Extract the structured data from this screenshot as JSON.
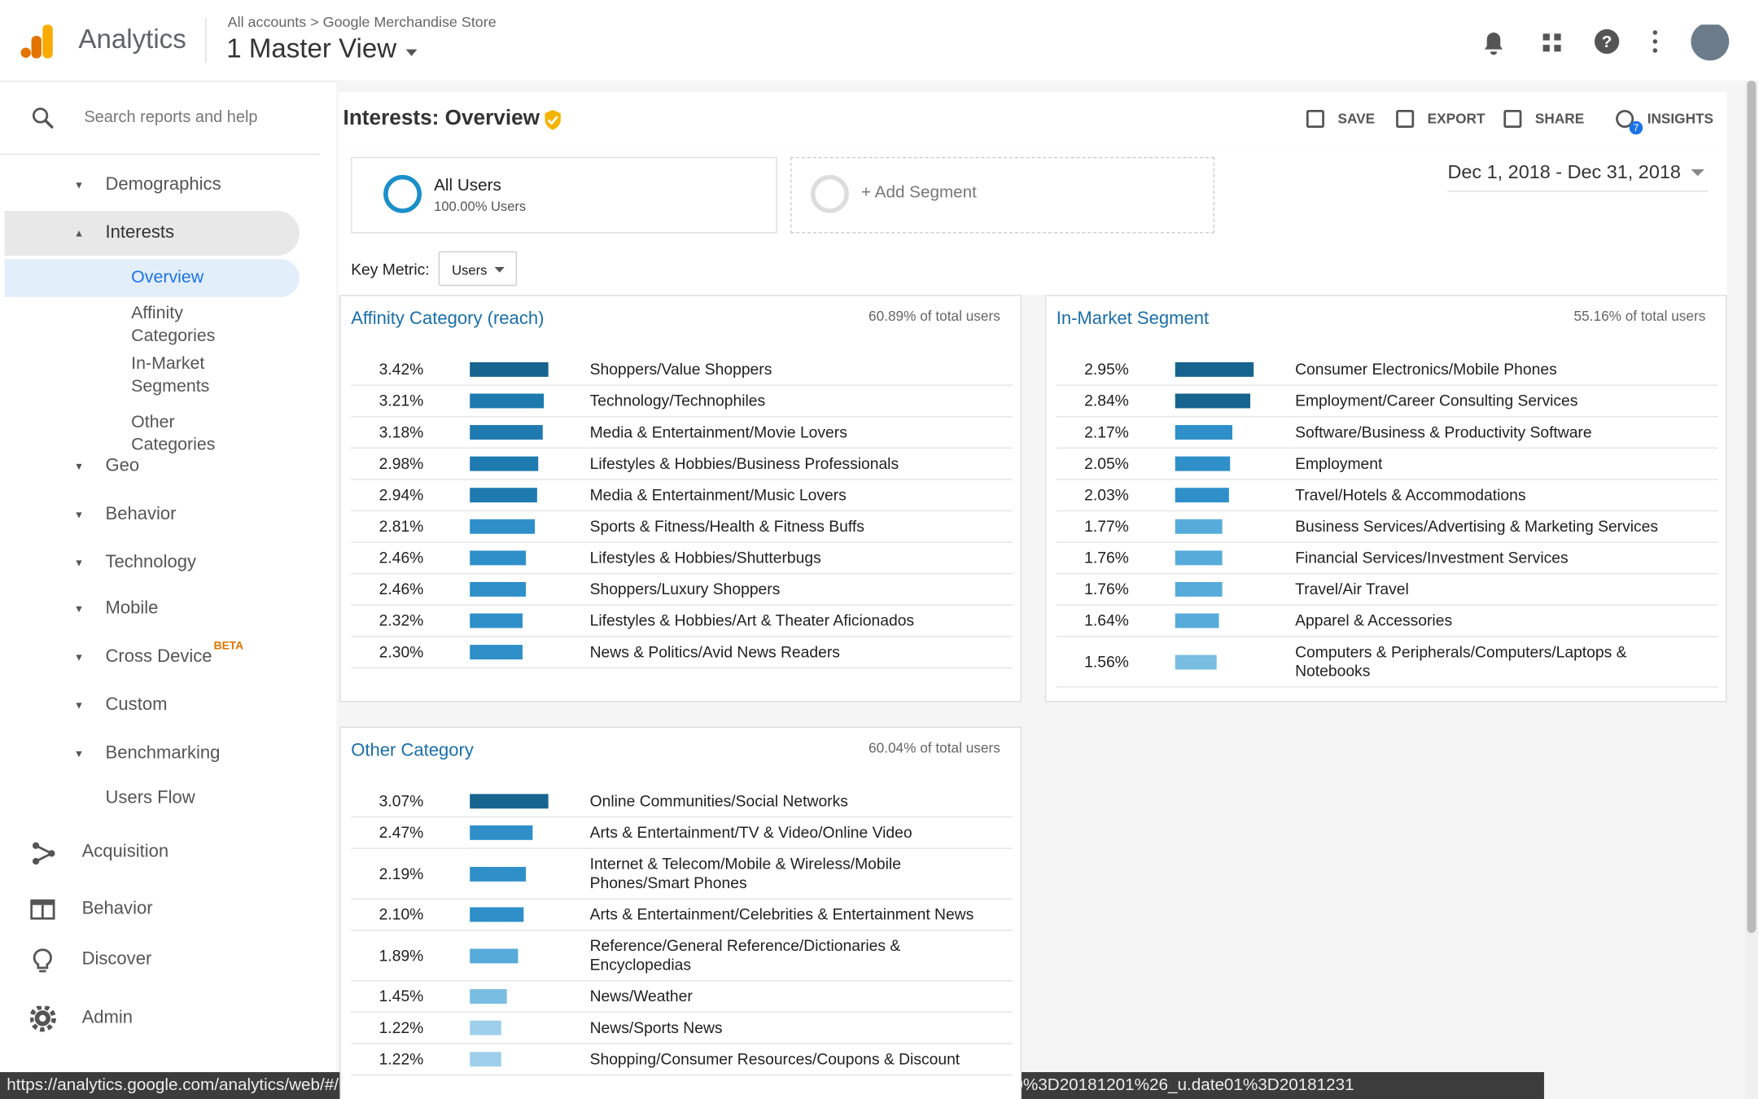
{
  "header": {
    "app": "Analytics",
    "breadcrumb": [
      "All accounts",
      "Google Merchandise Store"
    ],
    "view": "1 Master View"
  },
  "search": "Search reports and help",
  "nav": [
    {
      "label": "Demographics",
      "arrow": "down"
    },
    {
      "label": "Interests",
      "arrow": "up"
    },
    {
      "label": "Overview",
      "active": true
    },
    {
      "label": "Affinity Categories"
    },
    {
      "label": "In-Market Segments"
    },
    {
      "label": "Other Categories"
    },
    {
      "label": "Geo",
      "arrow": "down"
    },
    {
      "label": "Behavior",
      "arrow": "down"
    },
    {
      "label": "Technology",
      "arrow": "down"
    },
    {
      "label": "Mobile",
      "arrow": "down"
    },
    {
      "label": "Cross Device",
      "arrow": "down",
      "badge": "BETA"
    },
    {
      "label": "Custom",
      "arrow": "down"
    },
    {
      "label": "Benchmarking",
      "arrow": "down"
    },
    {
      "label": "Users Flow"
    }
  ],
  "sections": [
    "Acquisition",
    "Behavior",
    "Discover",
    "Admin"
  ],
  "report": {
    "title": "Interests: Overview",
    "actions": [
      "SAVE",
      "EXPORT",
      "SHARE",
      "INSIGHTS"
    ],
    "insights_count": 7,
    "segment": {
      "name": "All Users",
      "detail": "100.00% Users"
    },
    "add_segment": "+ Add Segment",
    "date_range": "Dec 1, 2018 - Dec 31, 2018",
    "key_metric_label": "Key Metric:",
    "key_metric": "Users"
  },
  "panels": [
    {
      "title": "Affinity Category (reach)",
      "total": "60.89% of total users",
      "rows": [
        {
          "value": 3.42,
          "value_label": "3.42%",
          "name": "Shoppers/Value Shoppers"
        },
        {
          "value": 3.21,
          "value_label": "3.21%",
          "name": "Technology/Technophiles"
        },
        {
          "value": 3.18,
          "value_label": "3.18%",
          "name": "Media & Entertainment/Movie Lovers"
        },
        {
          "value": 2.98,
          "value_label": "2.98%",
          "name": "Lifestyles & Hobbies/Business Professionals"
        },
        {
          "value": 2.94,
          "value_label": "2.94%",
          "name": "Media & Entertainment/Music Lovers"
        },
        {
          "value": 2.81,
          "value_label": "2.81%",
          "name": "Sports & Fitness/Health & Fitness Buffs"
        },
        {
          "value": 2.46,
          "value_label": "2.46%",
          "name": "Lifestyles & Hobbies/Shutterbugs"
        },
        {
          "value": 2.46,
          "value_label": "2.46%",
          "name": "Shoppers/Luxury Shoppers"
        },
        {
          "value": 2.32,
          "value_label": "2.32%",
          "name": "Lifestyles & Hobbies/Art & Theater Aficionados"
        },
        {
          "value": 2.3,
          "value_label": "2.30%",
          "name": "News & Politics/Avid News Readers"
        }
      ]
    },
    {
      "title": "In-Market Segment",
      "total": "55.16% of total users",
      "rows": [
        {
          "value": 2.95,
          "value_label": "2.95%",
          "name": "Consumer Electronics/Mobile Phones"
        },
        {
          "value": 2.84,
          "value_label": "2.84%",
          "name": "Employment/Career Consulting Services"
        },
        {
          "value": 2.17,
          "value_label": "2.17%",
          "name": "Software/Business & Productivity Software"
        },
        {
          "value": 2.05,
          "value_label": "2.05%",
          "name": "Employment"
        },
        {
          "value": 2.03,
          "value_label": "2.03%",
          "name": "Travel/Hotels & Accommodations"
        },
        {
          "value": 1.77,
          "value_label": "1.77%",
          "name": "Business Services/Advertising & Marketing Services"
        },
        {
          "value": 1.76,
          "value_label": "1.76%",
          "name": "Financial Services/Investment Services"
        },
        {
          "value": 1.76,
          "value_label": "1.76%",
          "name": "Travel/Air Travel"
        },
        {
          "value": 1.64,
          "value_label": "1.64%",
          "name": "Apparel & Accessories"
        },
        {
          "value": 1.56,
          "value_label": "1.56%",
          "name": "Computers & Peripherals/Computers/Laptops & Notebooks"
        }
      ]
    },
    {
      "title": "Other Category",
      "total": "60.04% of total users",
      "rows": [
        {
          "value": 3.07,
          "value_label": "3.07%",
          "name": "Online Communities/Social Networks"
        },
        {
          "value": 2.47,
          "value_label": "2.47%",
          "name": "Arts & Entertainment/TV & Video/Online Video"
        },
        {
          "value": 2.19,
          "value_label": "2.19%",
          "name": "Internet & Telecom/Mobile & Wireless/Mobile Phones/Smart Phones"
        },
        {
          "value": 2.1,
          "value_label": "2.10%",
          "name": "Arts & Entertainment/Celebrities & Entertainment News"
        },
        {
          "value": 1.89,
          "value_label": "1.89%",
          "name": "Reference/General Reference/Dictionaries & Encyclopedias"
        },
        {
          "value": 1.45,
          "value_label": "1.45%",
          "name": "News/Weather"
        },
        {
          "value": 1.22,
          "value_label": "1.22%",
          "name": "News/Sports News"
        },
        {
          "value": 1.22,
          "value_label": "1.22%",
          "name": "Shopping/Consumer Resources/Coupons & Discount"
        }
      ]
    }
  ],
  "status_url": "https://analytics.google.com/analytics/web/#/report/visitors-demographics-interest-overview/a54516992w87479473p92320289/_u.date00%3D20181201%26_u.date01%3D20181231"
}
